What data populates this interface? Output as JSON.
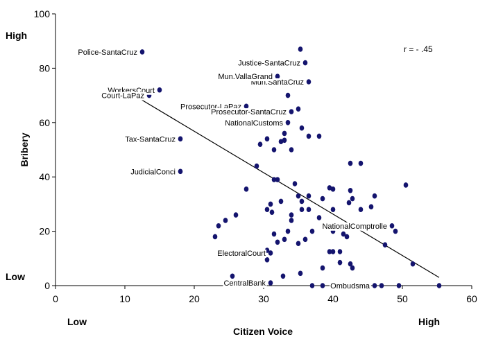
{
  "chart_data": {
    "type": "scatter",
    "title": "",
    "xlabel": "Citizen Voice",
    "ylabel": "Bribery",
    "xlim": [
      0,
      60
    ],
    "ylim": [
      0,
      100
    ],
    "x_ticks": [
      0,
      10,
      20,
      30,
      40,
      50,
      60
    ],
    "y_ticks": [
      0,
      20,
      40,
      60,
      80,
      100
    ],
    "x_ends": {
      "low": "Low",
      "high": "High"
    },
    "y_ends": {
      "low": "Low",
      "high": "High"
    },
    "correlation": "r = - .45",
    "grid": false,
    "marker_color": "#14146e",
    "trendline": {
      "x": [
        12,
        55.3
      ],
      "y": [
        69,
        3
      ]
    },
    "labeled_points": [
      {
        "label": "Police-SantaCruz",
        "x": 12.5,
        "y": 86
      },
      {
        "label": "WorkersCourt",
        "x": 15,
        "y": 72
      },
      {
        "label": "Court-LaPaz",
        "x": 13.5,
        "y": 70
      },
      {
        "label": "Tax-SantaCruz",
        "x": 18,
        "y": 54
      },
      {
        "label": "JudicialConci",
        "x": 18,
        "y": 42
      },
      {
        "label": "Justice-SantaCruz",
        "x": 36,
        "y": 82
      },
      {
        "label": "Mun.SantaCruz",
        "x": 36.5,
        "y": 75
      },
      {
        "label": "Mun.VallaGrand",
        "x": 32,
        "y": 77
      },
      {
        "label": "Prosecutor-LaPaz",
        "x": 27.5,
        "y": 66
      },
      {
        "label": "Prosecutor-SantaCruz",
        "x": 34,
        "y": 64
      },
      {
        "label": "NationalCustoms",
        "x": 33.5,
        "y": 60
      },
      {
        "label": "NationalComptrolle",
        "x": 48.5,
        "y": 22
      },
      {
        "label": "ElectoralCourt",
        "x": 31,
        "y": 12
      },
      {
        "label": "CentralBank",
        "x": 31,
        "y": 1
      },
      {
        "label": "Ombudsma",
        "x": 46,
        "y": 0
      }
    ],
    "points": [
      {
        "x": 35.3,
        "y": 87
      },
      {
        "x": 33.5,
        "y": 70
      },
      {
        "x": 35,
        "y": 65
      },
      {
        "x": 35.5,
        "y": 58
      },
      {
        "x": 33,
        "y": 56
      },
      {
        "x": 36.5,
        "y": 55
      },
      {
        "x": 38,
        "y": 55
      },
      {
        "x": 30.5,
        "y": 54
      },
      {
        "x": 33,
        "y": 53.5
      },
      {
        "x": 32.5,
        "y": 53
      },
      {
        "x": 29.5,
        "y": 52
      },
      {
        "x": 31.5,
        "y": 50
      },
      {
        "x": 34,
        "y": 50
      },
      {
        "x": 29,
        "y": 44
      },
      {
        "x": 42.5,
        "y": 45
      },
      {
        "x": 44,
        "y": 45
      },
      {
        "x": 31.5,
        "y": 39
      },
      {
        "x": 32,
        "y": 39
      },
      {
        "x": 34.5,
        "y": 37.5
      },
      {
        "x": 39.5,
        "y": 36
      },
      {
        "x": 40,
        "y": 35.5
      },
      {
        "x": 42.5,
        "y": 35
      },
      {
        "x": 27.5,
        "y": 35.5
      },
      {
        "x": 50.5,
        "y": 37
      },
      {
        "x": 46,
        "y": 33
      },
      {
        "x": 35,
        "y": 33
      },
      {
        "x": 36.5,
        "y": 33
      },
      {
        "x": 38.5,
        "y": 32
      },
      {
        "x": 42.8,
        "y": 32
      },
      {
        "x": 42.3,
        "y": 30.5
      },
      {
        "x": 35.5,
        "y": 31
      },
      {
        "x": 45.5,
        "y": 29
      },
      {
        "x": 31,
        "y": 30
      },
      {
        "x": 32.5,
        "y": 31
      },
      {
        "x": 30.5,
        "y": 28
      },
      {
        "x": 31.2,
        "y": 27
      },
      {
        "x": 35.5,
        "y": 28
      },
      {
        "x": 36.5,
        "y": 28
      },
      {
        "x": 40,
        "y": 28
      },
      {
        "x": 44,
        "y": 28
      },
      {
        "x": 34,
        "y": 26
      },
      {
        "x": 38,
        "y": 25
      },
      {
        "x": 26,
        "y": 26
      },
      {
        "x": 24.5,
        "y": 24
      },
      {
        "x": 23.5,
        "y": 22
      },
      {
        "x": 34,
        "y": 24
      },
      {
        "x": 23,
        "y": 18
      },
      {
        "x": 31.5,
        "y": 19
      },
      {
        "x": 33.5,
        "y": 20
      },
      {
        "x": 37,
        "y": 20
      },
      {
        "x": 40,
        "y": 20
      },
      {
        "x": 41.5,
        "y": 19
      },
      {
        "x": 42,
        "y": 18
      },
      {
        "x": 33,
        "y": 17
      },
      {
        "x": 36,
        "y": 17
      },
      {
        "x": 32,
        "y": 16
      },
      {
        "x": 35,
        "y": 15.5
      },
      {
        "x": 47.5,
        "y": 15
      },
      {
        "x": 49,
        "y": 20
      },
      {
        "x": 40,
        "y": 12.5
      },
      {
        "x": 39.5,
        "y": 12.5
      },
      {
        "x": 41,
        "y": 12.5
      },
      {
        "x": 30.5,
        "y": 13
      },
      {
        "x": 30.5,
        "y": 9.5
      },
      {
        "x": 41,
        "y": 8.5
      },
      {
        "x": 42.5,
        "y": 8
      },
      {
        "x": 42.8,
        "y": 6.5
      },
      {
        "x": 38.5,
        "y": 6.5
      },
      {
        "x": 51.5,
        "y": 8
      },
      {
        "x": 25.5,
        "y": 3.5
      },
      {
        "x": 32.8,
        "y": 3.5
      },
      {
        "x": 35.3,
        "y": 4.5
      },
      {
        "x": 37,
        "y": 0
      },
      {
        "x": 38.5,
        "y": 0
      },
      {
        "x": 47,
        "y": 0
      },
      {
        "x": 49.5,
        "y": 0
      },
      {
        "x": 55.3,
        "y": 0
      }
    ]
  }
}
